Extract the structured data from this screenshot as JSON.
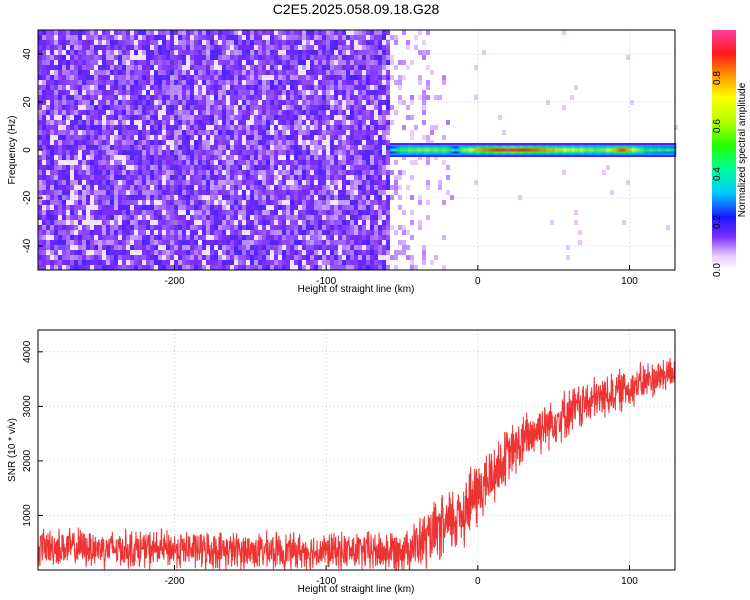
{
  "title": "C2E5.2025.058.09.18.G28",
  "chart_data": [
    {
      "type": "heatmap",
      "title": "C2E5.2025.058.09.18.G28",
      "xlabel": "Height of straight line (km)",
      "ylabel": "Frequency (Hz)",
      "xlim": [
        -290,
        130
      ],
      "ylim": [
        -50,
        50
      ],
      "x_ticks": [
        -200,
        -100,
        0,
        100
      ],
      "x_tick_labels": [
        "-200",
        "-100",
        "0",
        "100"
      ],
      "y_ticks": [
        -40,
        -20,
        0,
        20,
        40
      ],
      "y_tick_labels": [
        "-40",
        "-20",
        "0",
        "20",
        "40"
      ],
      "noise_region_x": [
        -290,
        -58
      ],
      "fade_region_x": [
        -58,
        -15
      ],
      "signal_line": {
        "x_start": -58,
        "x_end": 130,
        "frequency": 0,
        "amplitude_profile": [
          {
            "x": -58,
            "amp": 0.35
          },
          {
            "x": -50,
            "amp": 0.55
          },
          {
            "x": -35,
            "amp": 0.6
          },
          {
            "x": -20,
            "amp": 0.55
          },
          {
            "x": -15,
            "amp": 0.35
          },
          {
            "x": -10,
            "amp": 0.6
          },
          {
            "x": 0,
            "amp": 0.8
          },
          {
            "x": 20,
            "amp": 0.95
          },
          {
            "x": 40,
            "amp": 0.85
          },
          {
            "x": 60,
            "amp": 0.7
          },
          {
            "x": 80,
            "amp": 0.55
          },
          {
            "x": 95,
            "amp": 0.9
          },
          {
            "x": 110,
            "amp": 0.5
          },
          {
            "x": 130,
            "amp": 0.45
          }
        ]
      },
      "colorbar": {
        "label": "Normalized spectral amplitude",
        "range": [
          0,
          1
        ],
        "ticks": [
          0.0,
          0.2,
          0.4,
          0.6,
          0.8
        ],
        "tick_labels": [
          "0.0",
          "0.2",
          "0.4",
          "0.6",
          "0.8"
        ]
      },
      "grid": true
    },
    {
      "type": "line",
      "xlabel": "Height of straight line (km)",
      "ylabel": "SNR (10 * v/v)",
      "xlim": [
        -290,
        130
      ],
      "ylim": [
        0,
        4400
      ],
      "x_ticks": [
        -200,
        -100,
        0,
        100
      ],
      "x_tick_labels": [
        "-200",
        "-100",
        "0",
        "100"
      ],
      "y_ticks": [
        1000,
        2000,
        3000,
        4000
      ],
      "y_tick_labels": [
        "1000",
        "2000",
        "3000",
        "4000"
      ],
      "series": [
        {
          "color": "#ee3333",
          "trend": [
            {
              "x": -290,
              "y": 420
            },
            {
              "x": -250,
              "y": 400
            },
            {
              "x": -200,
              "y": 380
            },
            {
              "x": -150,
              "y": 350
            },
            {
              "x": -100,
              "y": 340
            },
            {
              "x": -60,
              "y": 340
            },
            {
              "x": -40,
              "y": 450
            },
            {
              "x": -20,
              "y": 800
            },
            {
              "x": 0,
              "y": 1400
            },
            {
              "x": 20,
              "y": 2100
            },
            {
              "x": 40,
              "y": 2600
            },
            {
              "x": 60,
              "y": 2900
            },
            {
              "x": 80,
              "y": 3150
            },
            {
              "x": 100,
              "y": 3350
            },
            {
              "x": 120,
              "y": 3550
            },
            {
              "x": 130,
              "y": 3650
            }
          ],
          "noise_amplitude": [
            {
              "x": -290,
              "y": 350
            },
            {
              "x": -100,
              "y": 330
            },
            {
              "x": -50,
              "y": 400
            },
            {
              "x": -10,
              "y": 700
            },
            {
              "x": 20,
              "y": 500
            },
            {
              "x": 130,
              "y": 320
            }
          ]
        }
      ],
      "grid": true
    }
  ]
}
